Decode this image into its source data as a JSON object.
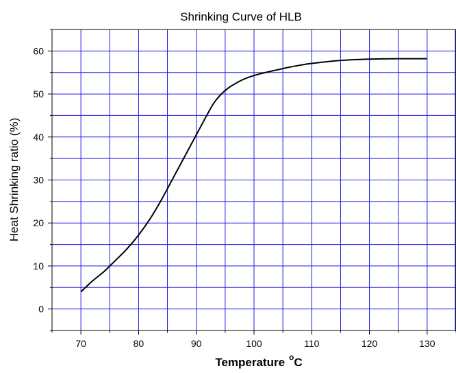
{
  "chart_data": {
    "type": "line",
    "title": "Shrinking Curve of HLB",
    "xlabel": "Temperature",
    "xlabel_unit_sup": "o",
    "xlabel_unit": "C",
    "ylabel": "Heat Shrinking ratio (%)",
    "xlim": [
      65,
      135
    ],
    "ylim": [
      -5,
      65
    ],
    "xticks": [
      70,
      80,
      90,
      100,
      110,
      120,
      130
    ],
    "yticks": [
      0,
      10,
      20,
      30,
      40,
      50,
      60
    ],
    "grid": true,
    "grid_color": "#1a1ae6",
    "line_color": "#000000",
    "series": [
      {
        "x": [
          70,
          72,
          74,
          75,
          76,
          78,
          80,
          82,
          84,
          86,
          88,
          90,
          92,
          93,
          94,
          95,
          96,
          98,
          100,
          102,
          104,
          106,
          108,
          110,
          115,
          120,
          125,
          130
        ],
        "y": [
          4,
          6.5,
          8.7,
          10,
          11.3,
          14,
          17.2,
          21,
          25.5,
          30.5,
          35.5,
          40.5,
          45.5,
          47.8,
          49.5,
          50.8,
          51.8,
          53.3,
          54.3,
          55.0,
          55.6,
          56.2,
          56.7,
          57.1,
          57.8,
          58.1,
          58.2,
          58.2
        ]
      }
    ]
  }
}
